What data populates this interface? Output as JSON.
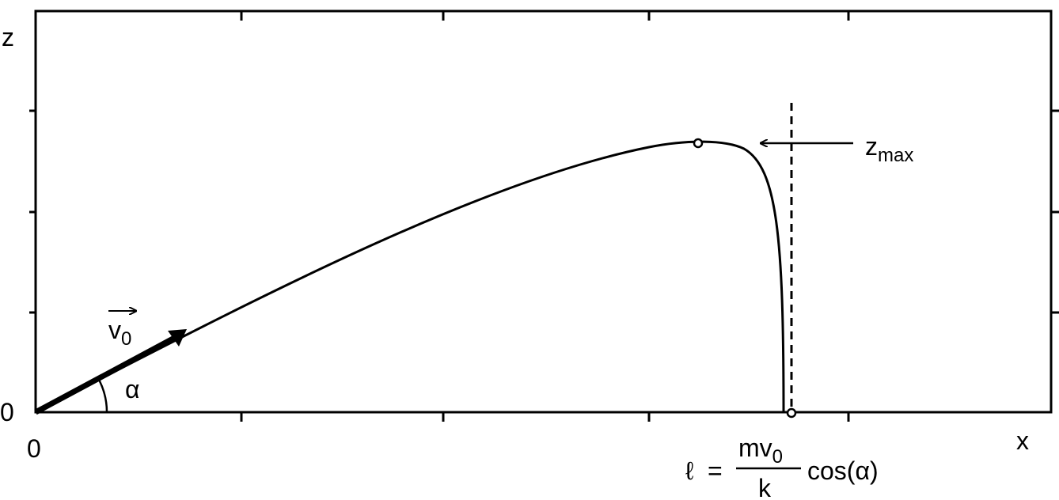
{
  "axes": {
    "z_label": "z",
    "z_origin": "0",
    "x_origin": "0",
    "x_label": "x"
  },
  "velocity": {
    "base": "v",
    "sub": "0"
  },
  "angle": "α",
  "z_max": {
    "base": "z",
    "sub": "max"
  },
  "range_formula": {
    "lhs": "ℓ",
    "equals": "=",
    "num_base": "mv",
    "num_sub": "0",
    "den": "k",
    "factor": "cos(α)"
  }
}
